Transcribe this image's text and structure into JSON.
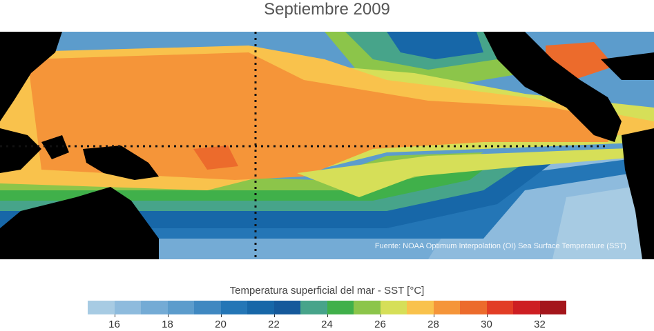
{
  "title": "Septiembre 2009",
  "credit": "Fuente: NOAA Optimum Interpolation (OI) Sea Surface Temperature (SST)",
  "colorbar": {
    "title": "Temperatura superficial del mar - SST  [°C]",
    "min": 15,
    "max": 33,
    "colors": [
      "#a7cbe3",
      "#8ebbdd",
      "#74abd5",
      "#5c9ccc",
      "#3f88c1",
      "#2476b6",
      "#1767a8",
      "#15599b",
      "#47a48a",
      "#40b04a",
      "#8cc54a",
      "#d6df58",
      "#f9c24c",
      "#f59539",
      "#ec6b2c",
      "#e23d25",
      "#cd1e22",
      "#a4151b"
    ],
    "ticks": [
      "16",
      "18",
      "20",
      "22",
      "24",
      "26",
      "28",
      "30",
      "32"
    ]
  },
  "colors": {
    "land": "#000000",
    "grid": "#111111"
  }
}
